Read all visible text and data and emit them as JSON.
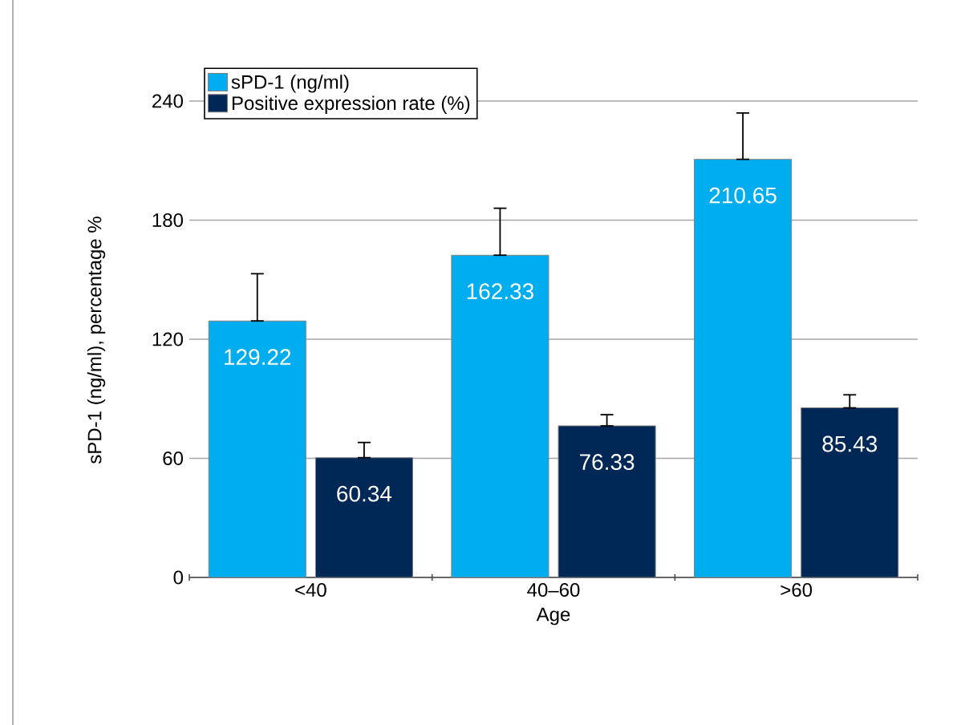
{
  "chart_data": {
    "type": "bar",
    "xlabel": "Age",
    "ylabel": "sPD-1 (ng/ml), percentage %",
    "categories": [
      "<40",
      "40–60",
      ">60"
    ],
    "series": [
      {
        "name": "sPD-1 (ng/ml)",
        "color": "#00aeef",
        "values": [
          129.22,
          162.33,
          210.65
        ],
        "errors": [
          [
            129.22,
            153
          ],
          [
            162.33,
            186
          ],
          [
            210.65,
            234
          ]
        ]
      },
      {
        "name": "Positive expression rate (%)",
        "color": "#002856",
        "values": [
          60.34,
          76.33,
          85.43
        ],
        "errors": [
          [
            60.34,
            68
          ],
          [
            76.33,
            82
          ],
          [
            85.43,
            92
          ]
        ]
      }
    ],
    "ylim": [
      0,
      240
    ],
    "yticks": [
      0,
      60,
      120,
      180,
      240
    ],
    "grid": "y",
    "legend": "top left",
    "data_labels": true
  }
}
